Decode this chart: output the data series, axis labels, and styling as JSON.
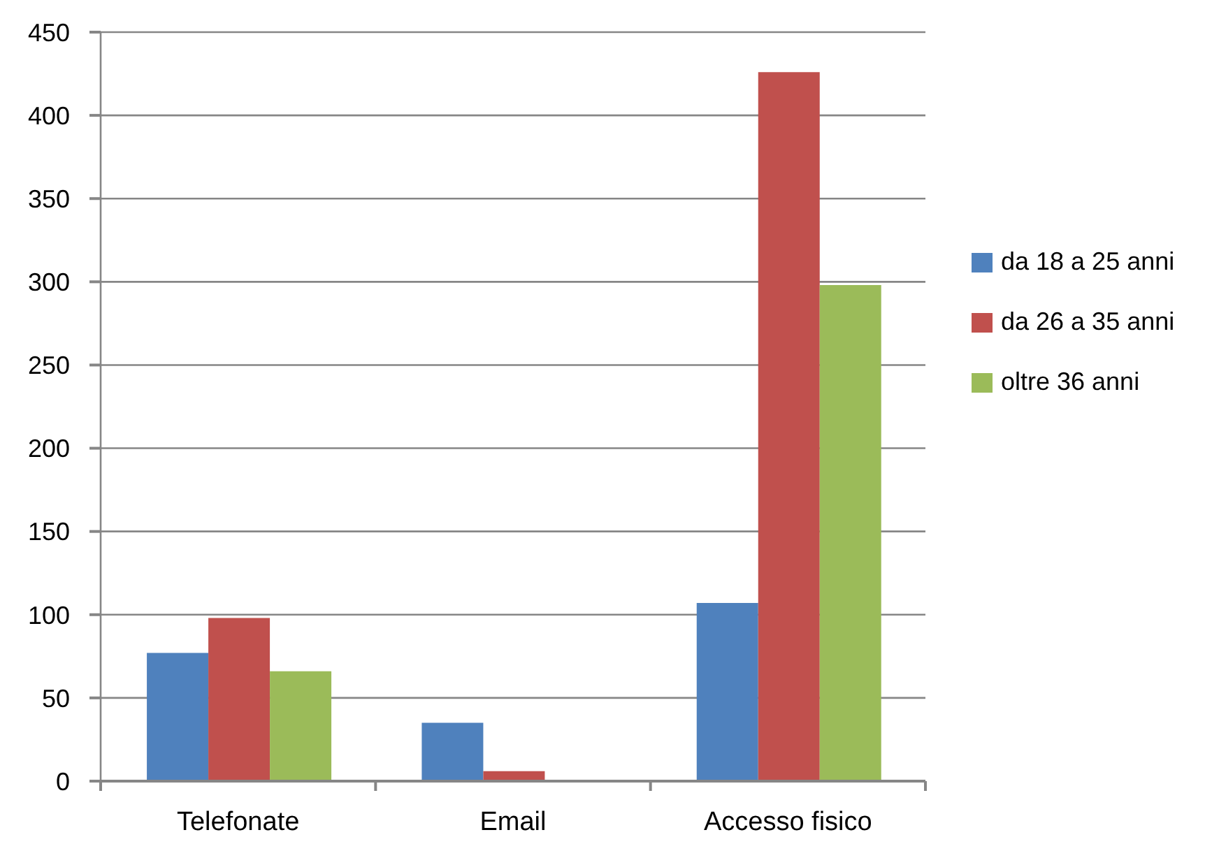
{
  "chart_data": {
    "type": "bar",
    "categories": [
      "Telefonate",
      "Email",
      "Accesso fisico"
    ],
    "series": [
      {
        "name": "da 18 a 25 anni",
        "color": "#4f81bd",
        "values": [
          77,
          35,
          107
        ]
      },
      {
        "name": "da 26 a 35 anni",
        "color": "#c0504d",
        "values": [
          98,
          6,
          426
        ]
      },
      {
        "name": "oltre 36 anni",
        "color": "#9bbb59",
        "values": [
          66,
          0,
          298
        ]
      }
    ],
    "ylim": [
      0,
      450
    ],
    "yticks": [
      0,
      50,
      100,
      150,
      200,
      250,
      300,
      350,
      400,
      450
    ],
    "grid": "y",
    "legend": "right"
  }
}
